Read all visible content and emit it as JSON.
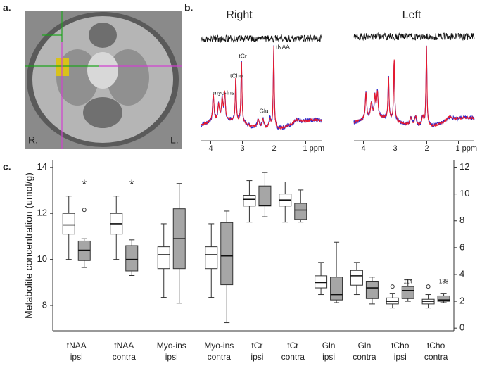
{
  "panels": {
    "a": "a.",
    "b": "b.",
    "c": "c."
  },
  "mri": {
    "left_label": "R.",
    "right_label": "L."
  },
  "chart_data": [
    {
      "type": "spectrum",
      "title": "Right",
      "xlim": [
        4.3,
        0.5
      ],
      "xticks": [
        4,
        3,
        2,
        {
          "value": 1,
          "label": "1 ppm"
        }
      ],
      "colors": [
        "#e8192c",
        "#2a2ad0"
      ],
      "peak_labels": [
        "myo-Ins",
        "tCho",
        "tCr",
        "tNAA",
        "Glu"
      ]
    },
    {
      "type": "spectrum",
      "title": "Left",
      "xlim": [
        4.3,
        0.5
      ],
      "xticks": [
        4,
        3,
        2,
        {
          "value": 1,
          "label": "1 ppm"
        }
      ],
      "colors": [
        "#e8192c",
        "#2a2ad0"
      ]
    },
    {
      "type": "box",
      "ylabel": "Metabolite concentration (umol/g)",
      "ylim": [
        6.9,
        14.3
      ],
      "yticks": [
        8,
        10,
        12,
        14
      ],
      "axis_side": "left",
      "categories": [
        [
          "tNAA",
          "ipsi"
        ],
        [
          "tNAA",
          "contra"
        ],
        [
          "Myo-ins",
          "ipsi"
        ],
        [
          "Myo-ins",
          "contra"
        ]
      ],
      "series": [
        {
          "color": "#ffffff",
          "boxes": [
            {
              "whislo": 10.0,
              "q1": 11.1,
              "med": 11.5,
              "q3": 12.0,
              "whishi": 12.75
            },
            {
              "whislo": 10.0,
              "q1": 11.1,
              "med": 11.55,
              "q3": 12.0,
              "whishi": 12.75
            },
            {
              "whislo": 8.35,
              "q1": 9.6,
              "med": 10.2,
              "q3": 10.55,
              "whishi": 11.55
            },
            {
              "whislo": 8.35,
              "q1": 9.6,
              "med": 10.2,
              "q3": 10.55,
              "whishi": 11.55
            }
          ]
        },
        {
          "color": "#a6a6a6",
          "boxes": [
            {
              "whislo": 9.65,
              "q1": 9.95,
              "med": 10.4,
              "q3": 10.8,
              "whishi": 10.9,
              "fliers": [
                12.15
              ]
            },
            {
              "whislo": 9.3,
              "q1": 9.5,
              "med": 10.0,
              "q3": 10.6,
              "whishi": 10.85
            },
            {
              "whislo": 8.1,
              "q1": 9.6,
              "med": 10.9,
              "q3": 12.2,
              "whishi": 13.3
            },
            {
              "whislo": 7.25,
              "q1": 8.9,
              "med": 10.15,
              "q3": 11.6,
              "whishi": 12.1
            }
          ]
        }
      ],
      "annotations": [
        {
          "text": "*",
          "color": "#e8391f"
        },
        {
          "text": "*",
          "color": "#e8391f"
        }
      ]
    },
    {
      "type": "box",
      "ylim": [
        -0.2,
        12.5
      ],
      "yticks": [
        0,
        2,
        4,
        6,
        8,
        10,
        12
      ],
      "axis_side": "right",
      "categories": [
        [
          "tCr",
          "ipsi"
        ],
        [
          "tCr",
          "contra"
        ],
        [
          "Gln",
          "ipsi"
        ],
        [
          "Gln",
          "contra"
        ],
        [
          "tCho",
          "ipsi"
        ],
        [
          "tCho",
          "contra"
        ]
      ],
      "series": [
        {
          "color": "#ffffff",
          "boxes": [
            {
              "whislo": 7.9,
              "q1": 9.1,
              "med": 9.6,
              "q3": 9.9,
              "whishi": 11.0
            },
            {
              "whislo": 7.9,
              "q1": 9.1,
              "med": 9.55,
              "q3": 10.0,
              "whishi": 10.9
            },
            {
              "whislo": 2.5,
              "q1": 3.0,
              "med": 3.4,
              "q3": 3.9,
              "whishi": 4.9
            },
            {
              "whislo": 2.5,
              "q1": 3.2,
              "med": 3.9,
              "q3": 4.3,
              "whishi": 4.9
            },
            {
              "whislo": 1.5,
              "q1": 1.8,
              "med": 2.0,
              "q3": 2.25,
              "whishi": 2.6,
              "fliers": [
                3.1
              ]
            },
            {
              "whislo": 1.5,
              "q1": 1.8,
              "med": 2.0,
              "q3": 2.15,
              "whishi": 2.5,
              "fliers": [
                3.1
              ]
            }
          ]
        },
        {
          "color": "#a6a6a6",
          "boxes": [
            {
              "whislo": 8.3,
              "q1": 9.1,
              "med": 9.15,
              "q3": 10.6,
              "whishi": 11.6
            },
            {
              "whislo": 7.9,
              "q1": 8.1,
              "med": 8.8,
              "q3": 9.3,
              "whishi": 10.3
            },
            {
              "whislo": 1.9,
              "q1": 2.1,
              "med": 2.5,
              "q3": 3.8,
              "whishi": 6.4
            },
            {
              "whislo": 1.8,
              "q1": 2.2,
              "med": 3.0,
              "q3": 3.5,
              "whishi": 3.8
            },
            {
              "whislo": 2.0,
              "q1": 2.2,
              "med": 2.8,
              "q3": 3.1,
              "whishi": 3.6
            },
            {
              "whislo": 1.9,
              "q1": 2.0,
              "med": 2.1,
              "q3": 2.4,
              "whishi": 2.6
            }
          ]
        }
      ],
      "annotations": [
        {
          "text": "114",
          "color": "#333333"
        },
        {
          "text": "138",
          "color": "#333333"
        }
      ]
    }
  ]
}
